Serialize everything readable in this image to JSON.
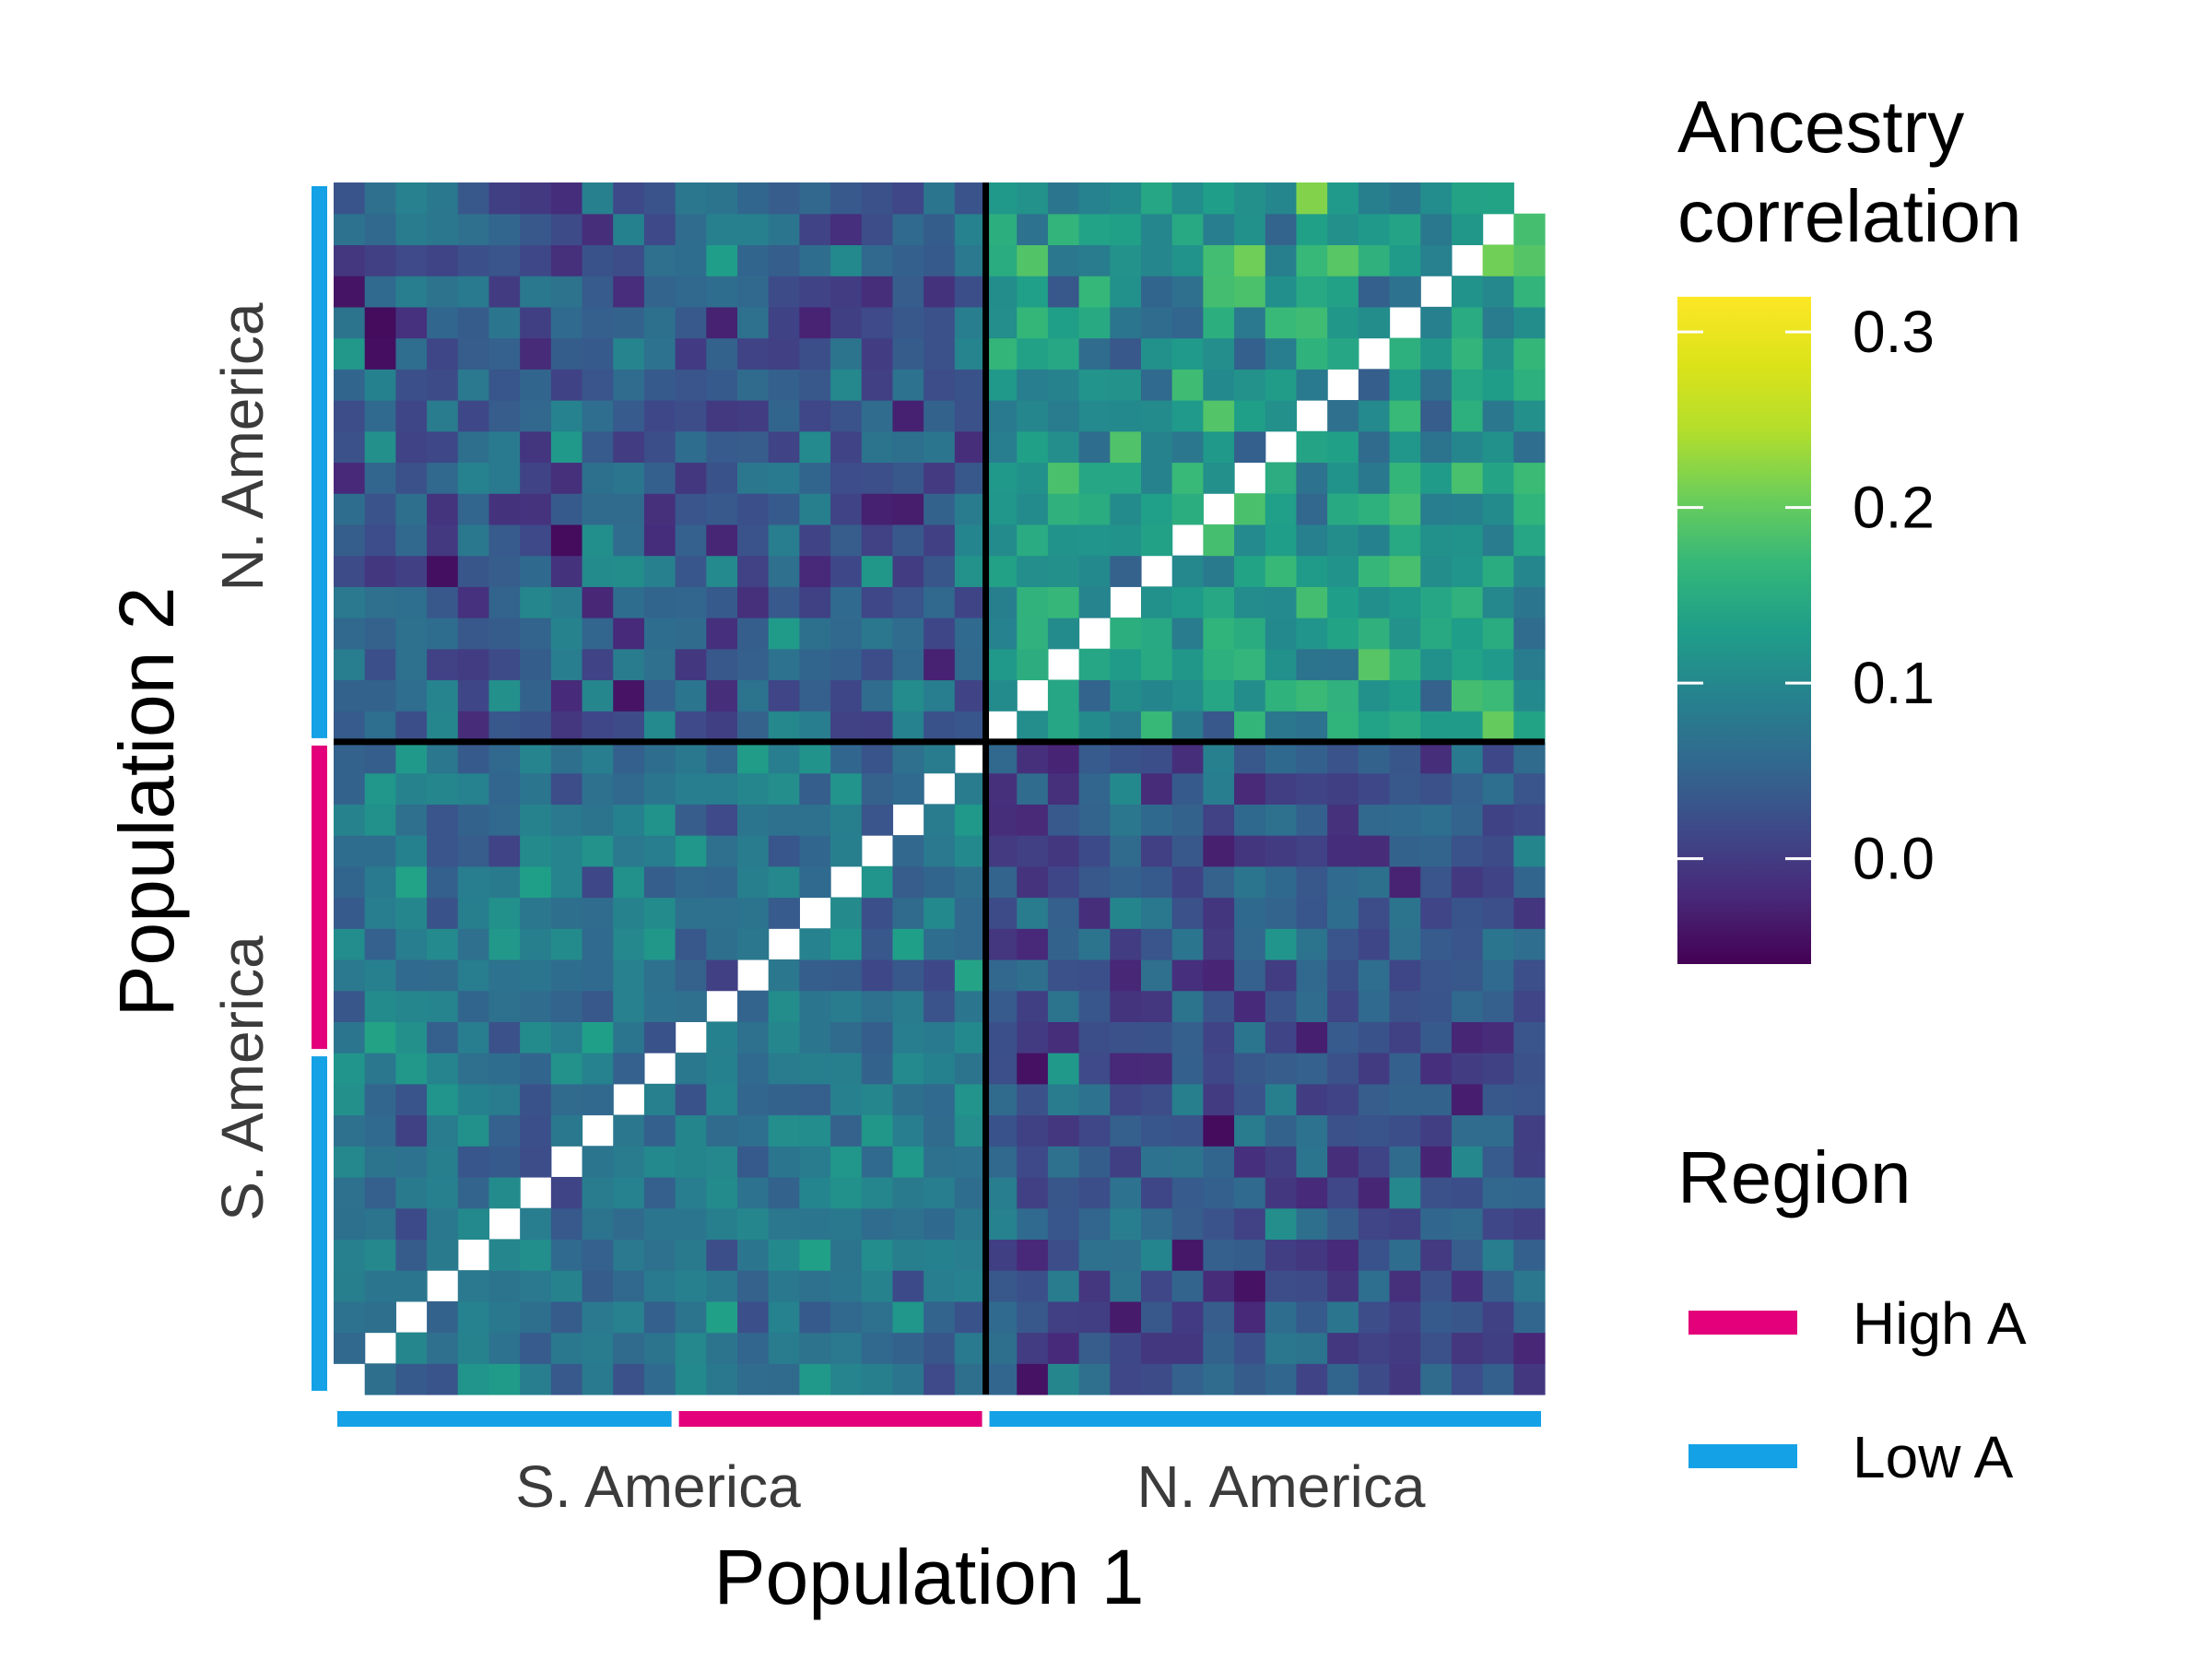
{
  "chart_data": {
    "type": "heatmap",
    "title": "",
    "xlabel": "Population 1",
    "ylabel": "Population 2",
    "n": 39,
    "diagonal": "missing",
    "x_groups": [
      {
        "label": "S. America",
        "start": 1,
        "end": 21
      },
      {
        "label": "N. America",
        "start": 22,
        "end": 39
      }
    ],
    "y_groups": [
      {
        "label": "S. America",
        "start": 1,
        "end": 21
      },
      {
        "label": "N. America",
        "start": 22,
        "end": 39
      }
    ],
    "region_bars": [
      {
        "region": "Low A",
        "start": 1,
        "end": 11
      },
      {
        "region": "High A",
        "start": 12,
        "end": 21
      },
      {
        "region": "Low A",
        "start": 22,
        "end": 39
      }
    ],
    "block_summary": [
      {
        "x_group": "S. America",
        "y_group": "S. America",
        "typical": 0.07,
        "range": [
          -0.04,
          0.19
        ]
      },
      {
        "x_group": "N. America",
        "y_group": "S. America",
        "typical": 0.03,
        "range": [
          -0.05,
          0.24
        ]
      },
      {
        "x_group": "S. America",
        "y_group": "N. America",
        "typical": 0.04,
        "range": [
          -0.05,
          0.25
        ]
      },
      {
        "x_group": "N. America",
        "y_group": "N. America",
        "typical": 0.12,
        "range": [
          0.0,
          0.32
        ]
      }
    ],
    "colorbar": {
      "title_lines": [
        "Ancestry",
        "correlation"
      ],
      "min": -0.06,
      "max": 0.32,
      "ticks": [
        0.0,
        0.1,
        0.2,
        0.3
      ],
      "tick_labels": [
        "0.0",
        "0.1",
        "0.2",
        "0.3"
      ],
      "colormap": "viridis"
    },
    "legend": {
      "title": "Region",
      "items": [
        {
          "label": "High A",
          "color": "#E3007A"
        },
        {
          "label": "Low A",
          "color": "#14A1E6"
        }
      ],
      "placement": "right"
    },
    "grid": false
  }
}
